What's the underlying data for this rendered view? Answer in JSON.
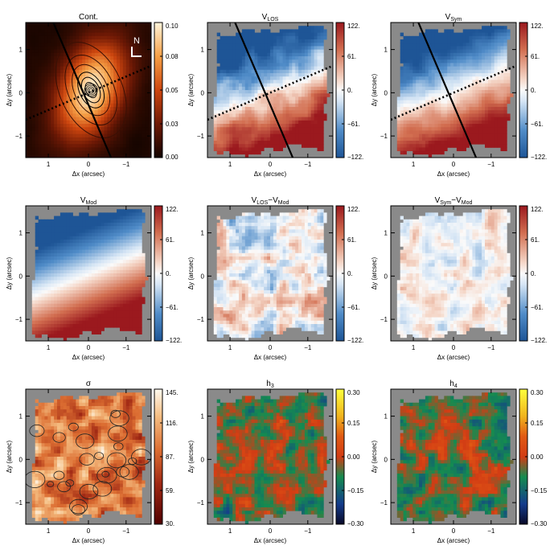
{
  "chart_data": [
    {
      "type": "heatmap",
      "title": "Cont.",
      "xlabel": "Δx (arcsec)",
      "ylabel": "Δy (arcsec)",
      "xticks": [
        "1",
        "0",
        "−1"
      ],
      "yticks": [
        "1",
        "0",
        "−1"
      ],
      "colorbar_ticks": [
        "0.10",
        "0.08",
        "0.05",
        "0.03",
        "0.00"
      ],
      "colorbar_range": [
        0,
        0.1
      ],
      "colormap": "orange-black",
      "contours": true,
      "compass": "N",
      "overlay": {
        "solid_line_pa": "major axis",
        "dotted_line": "minor axis"
      }
    },
    {
      "type": "heatmap",
      "title": "V",
      "title_sub": "LOS",
      "xlabel": "Δx (arcsec)",
      "ylabel": "Δy (arcsec)",
      "xticks": [
        "1",
        "0",
        "−1"
      ],
      "yticks": [
        "1",
        "0",
        "−1"
      ],
      "colorbar_ticks": [
        "122.",
        "61.",
        "0.",
        "−61.",
        "−122."
      ],
      "colorbar_range": [
        -122,
        122
      ],
      "colormap": "blue-white-red",
      "overlay": {
        "solid_line_pa": "major axis",
        "dotted_line": "minor axis"
      }
    },
    {
      "type": "heatmap",
      "title": "V",
      "title_sub": "Sym",
      "xlabel": "Δx (arcsec)",
      "ylabel": "Δy (arcsec)",
      "xticks": [
        "1",
        "0",
        "−1"
      ],
      "yticks": [
        "1",
        "0",
        "−1"
      ],
      "colorbar_ticks": [
        "122.",
        "61.",
        "0.",
        "−61.",
        "−122."
      ],
      "colorbar_range": [
        -122,
        122
      ],
      "colormap": "blue-white-red",
      "overlay": {
        "solid_line_pa": "major axis",
        "dotted_line": "minor axis"
      }
    },
    {
      "type": "heatmap",
      "title": "V",
      "title_sub": "Mod",
      "xlabel": "Δx (arcsec)",
      "ylabel": "Δy (arcsec)",
      "xticks": [
        "1",
        "0",
        "−1"
      ],
      "yticks": [
        "1",
        "0",
        "−1"
      ],
      "colorbar_ticks": [
        "122.",
        "61.",
        "0.",
        "−61.",
        "−122."
      ],
      "colorbar_range": [
        -122,
        122
      ],
      "colormap": "blue-white-red"
    },
    {
      "type": "heatmap",
      "title": "V",
      "title_sub": "LOS",
      "title_mid": "−V",
      "title_sub2": "Mod",
      "xlabel": "Δx (arcsec)",
      "ylabel": "Δy (arcsec)",
      "xticks": [
        "1",
        "0",
        "−1"
      ],
      "yticks": [
        "1",
        "0",
        "−1"
      ],
      "colorbar_ticks": [
        "122.",
        "61.",
        "0.",
        "−61.",
        "−122."
      ],
      "colorbar_range": [
        -122,
        122
      ],
      "colormap": "blue-white-red"
    },
    {
      "type": "heatmap",
      "title": "V",
      "title_sub": "Sym",
      "title_mid": "−V",
      "title_sub2": "Mod",
      "xlabel": "Δx (arcsec)",
      "ylabel": "Δy (arcsec)",
      "xticks": [
        "1",
        "0",
        "−1"
      ],
      "yticks": [
        "1",
        "0",
        "−1"
      ],
      "colorbar_ticks": [
        "122.",
        "61.",
        "0.",
        "−61.",
        "−122."
      ],
      "colorbar_range": [
        -122,
        122
      ],
      "colormap": "blue-white-red"
    },
    {
      "type": "heatmap",
      "title": "σ",
      "xlabel": "Δx (arcsec)",
      "ylabel": "Δy (arcsec)",
      "xticks": [
        "1",
        "0",
        "−1"
      ],
      "yticks": [
        "1",
        "0",
        "−1"
      ],
      "colorbar_ticks": [
        "145.",
        "116.",
        "87.",
        "59.",
        "30."
      ],
      "colorbar_range": [
        30,
        145
      ],
      "colormap": "white-orange-darkred",
      "contours": true
    },
    {
      "type": "heatmap",
      "title": "h",
      "title_sub": "3",
      "xlabel": "Δx (arcsec)",
      "ylabel": "Δy (arcsec)",
      "xticks": [
        "1",
        "0",
        "−1"
      ],
      "yticks": [
        "1",
        "0",
        "−1"
      ],
      "colorbar_ticks": [
        "0.30",
        "0.15",
        "0.00",
        "−0.15",
        "−0.30"
      ],
      "colorbar_range": [
        -0.3,
        0.3
      ],
      "colormap": "rainbow"
    },
    {
      "type": "heatmap",
      "title": "h",
      "title_sub": "4",
      "xlabel": "Δx (arcsec)",
      "ylabel": "Δy (arcsec)",
      "xticks": [
        "1",
        "0",
        "−1"
      ],
      "yticks": [
        "1",
        "0",
        "−1"
      ],
      "colorbar_ticks": [
        "0.30",
        "0.15",
        "0.00",
        "−0.15",
        "−0.30"
      ],
      "colorbar_range": [
        -0.3,
        0.3
      ],
      "colormap": "rainbow"
    }
  ],
  "colors": {
    "masked": "#8a8a8a",
    "velocity_blue": "#2c6aa8",
    "velocity_red": "#a8322a",
    "cont_dark": "#1a0600",
    "cont_bright": "#fff3d6",
    "sigma_dark": "#6a0a0a",
    "h_red": "#d2401e",
    "h_green": "#1f8a4a"
  }
}
